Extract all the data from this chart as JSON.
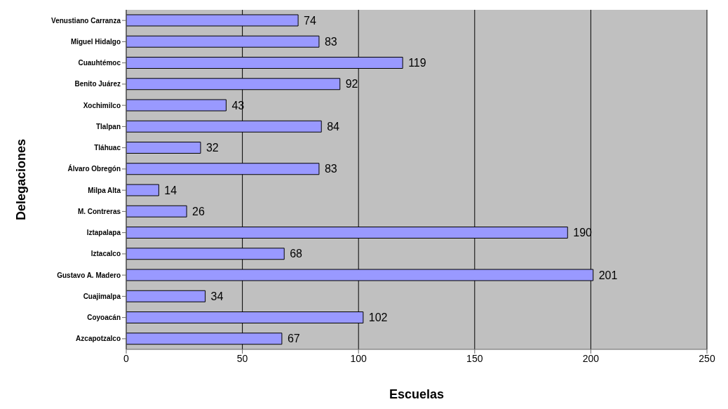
{
  "chart_data": {
    "type": "bar",
    "orientation": "horizontal",
    "xlabel": "Escuelas",
    "ylabel": "Delegaciones",
    "categories": [
      "Venustiano Carranza",
      "Miguel Hidalgo",
      "Cuauhtémoc",
      "Benito Juárez",
      "Xochimilco",
      "Tlalpan",
      "Tláhuac",
      "Álvaro Obregón",
      "Milpa Alta",
      "M. Contreras",
      "Iztapalapa",
      "Iztacalco",
      "Gustavo A. Madero",
      "Cuajimalpa",
      "Coyoacán",
      "Azcapotzalco"
    ],
    "values": [
      74,
      83,
      119,
      92,
      43,
      84,
      32,
      83,
      14,
      26,
      190,
      68,
      201,
      34,
      102,
      67
    ],
    "color": "#9999ff",
    "xlim": [
      0,
      250
    ],
    "xticks": [
      0,
      50,
      100,
      150,
      200,
      250
    ],
    "grid": "x",
    "data_labels": true
  }
}
